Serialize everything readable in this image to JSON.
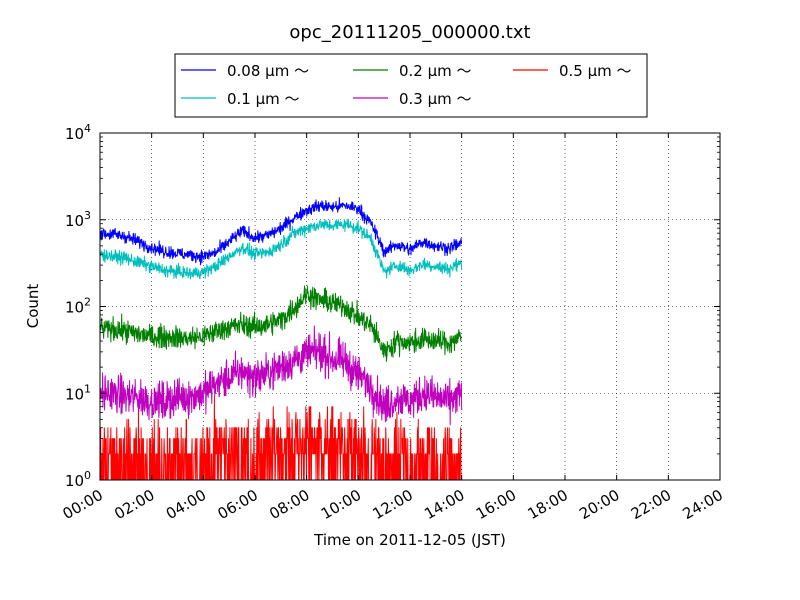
{
  "chart_data": {
    "type": "line",
    "title": "opc_20111205_000000.txt",
    "xlabel": "Time on 2011-12-05 (JST)",
    "ylabel": "Count",
    "xlim": [
      "2011-12-05 00:00",
      "2011-12-06 00:00"
    ],
    "ylim": [
      1,
      10000
    ],
    "yscale": "log",
    "grid": true,
    "legend_position": "top-center",
    "x_ticks": [
      "00:00",
      "02:00",
      "04:00",
      "06:00",
      "08:00",
      "10:00",
      "12:00",
      "14:00",
      "16:00",
      "18:00",
      "20:00",
      "22:00",
      "24:00"
    ],
    "y_ticks": [
      {
        "base": "10",
        "exp": "0"
      },
      {
        "base": "10",
        "exp": "1"
      },
      {
        "base": "10",
        "exp": "2"
      },
      {
        "base": "10",
        "exp": "3"
      },
      {
        "base": "10",
        "exp": "4"
      }
    ],
    "x": [
      "00:00",
      "00:30",
      "01:00",
      "01:30",
      "02:00",
      "02:30",
      "03:00",
      "03:30",
      "04:00",
      "04:30",
      "05:00",
      "05:30",
      "06:00",
      "06:30",
      "07:00",
      "07:30",
      "08:00",
      "08:30",
      "09:00",
      "09:30",
      "10:00",
      "10:30",
      "11:00",
      "11:30",
      "12:00",
      "12:30",
      "13:00",
      "13:30",
      "14:00"
    ],
    "series": [
      {
        "name": "0.08 μm ～",
        "color": "#0000ff",
        "noise": 0.05,
        "values": [
          700,
          680,
          640,
          560,
          480,
          430,
          410,
          390,
          380,
          420,
          560,
          740,
          620,
          660,
          800,
          1050,
          1300,
          1450,
          1400,
          1450,
          1350,
          900,
          430,
          520,
          450,
          560,
          500,
          470,
          540
        ]
      },
      {
        "name": "0.1 μm ～",
        "color": "#00bfbf",
        "noise": 0.05,
        "values": [
          400,
          380,
          360,
          320,
          290,
          260,
          250,
          240,
          250,
          290,
          380,
          480,
          400,
          420,
          520,
          700,
          800,
          880,
          860,
          890,
          800,
          600,
          250,
          300,
          260,
          310,
          290,
          270,
          320
        ]
      },
      {
        "name": "0.2 μm ～",
        "color": "#007f00",
        "noise": 0.09,
        "values": [
          55,
          55,
          52,
          48,
          45,
          45,
          44,
          43,
          45,
          52,
          58,
          62,
          58,
          62,
          70,
          95,
          140,
          120,
          110,
          100,
          75,
          60,
          30,
          40,
          38,
          42,
          40,
          38,
          45
        ]
      },
      {
        "name": "0.3 μm ～",
        "color": "#bf00bf",
        "noise": 0.15,
        "values": [
          10,
          10,
          9,
          9,
          8,
          8,
          9,
          9,
          10,
          13,
          15,
          18,
          15,
          17,
          20,
          24,
          28,
          30,
          25,
          23,
          16,
          12,
          7,
          9,
          8,
          10,
          9,
          8,
          10
        ]
      },
      {
        "name": "0.5 μm ～",
        "color": "#ff0000",
        "noise": 0.0,
        "discrete": true,
        "values": [
          1.8,
          1.8,
          1.6,
          1.6,
          1.5,
          1.5,
          1.6,
          1.6,
          1.7,
          2,
          2,
          2.2,
          2,
          2.2,
          2.5,
          2.8,
          3,
          3,
          2.8,
          2.5,
          2,
          1.8,
          1.4,
          1.6,
          1.5,
          1.6,
          1.6,
          1.5,
          1.7
        ]
      }
    ]
  }
}
